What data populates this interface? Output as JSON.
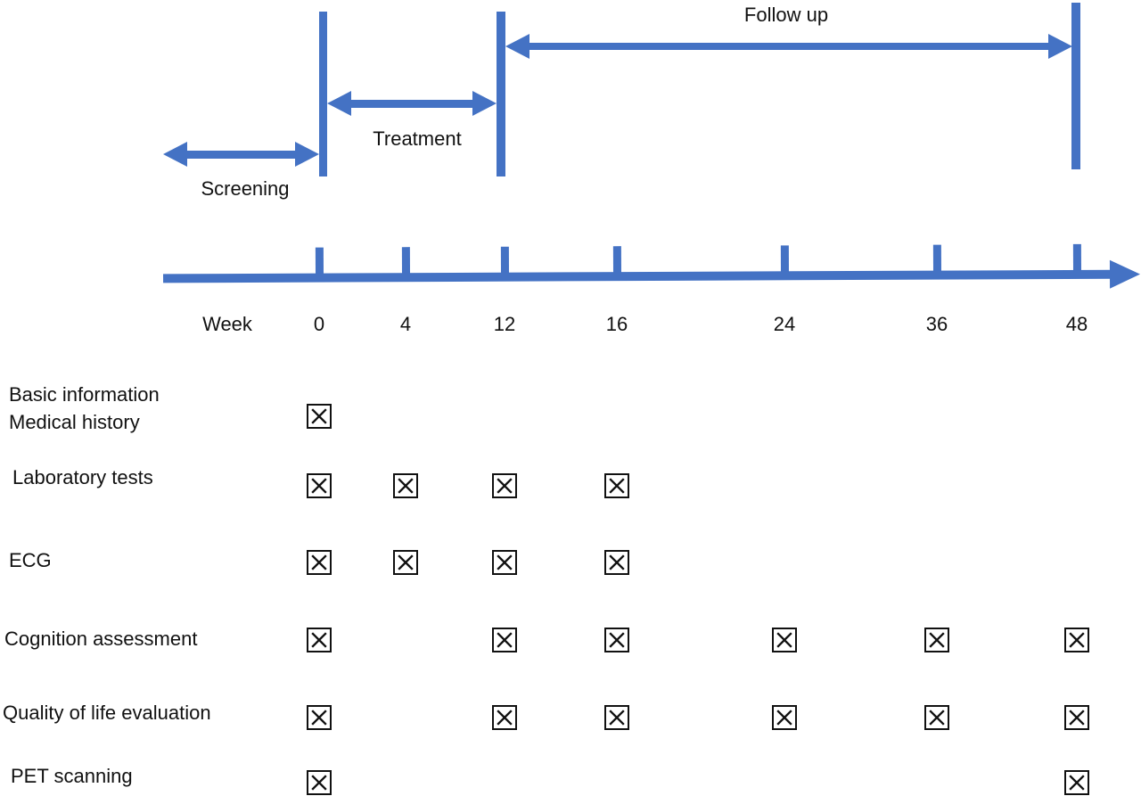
{
  "phases": [
    {
      "id": "screening",
      "label": "Screening"
    },
    {
      "id": "treatment",
      "label": "Treatment"
    },
    {
      "id": "followup",
      "label": "Follow up"
    }
  ],
  "timeline": {
    "axis_label": "Week",
    "weeks": [
      "0",
      "4",
      "12",
      "16",
      "24",
      "36",
      "48"
    ]
  },
  "schedule_rows": [
    {
      "label_lines": [
        "Basic information",
        "Medical history"
      ],
      "marked_weeks": [
        "0"
      ]
    },
    {
      "label_lines": [
        "Laboratory tests"
      ],
      "marked_weeks": [
        "0",
        "4",
        "12",
        "16"
      ]
    },
    {
      "label_lines": [
        "ECG"
      ],
      "marked_weeks": [
        "0",
        "4",
        "12",
        "16"
      ]
    },
    {
      "label_lines": [
        "Cognition assessment"
      ],
      "marked_weeks": [
        "0",
        "12",
        "16",
        "24",
        "36",
        "48"
      ]
    },
    {
      "label_lines": [
        "Quality of life evaluation"
      ],
      "marked_weeks": [
        "0",
        "12",
        "16",
        "24",
        "36",
        "48"
      ]
    },
    {
      "label_lines": [
        "PET scanning"
      ],
      "marked_weeks": [
        "0",
        "48"
      ]
    }
  ],
  "icons": {
    "mark": "crossed-checkbox-icon"
  },
  "colors": {
    "arrow_blue": "#4472C4",
    "mark_black": "#111111"
  }
}
